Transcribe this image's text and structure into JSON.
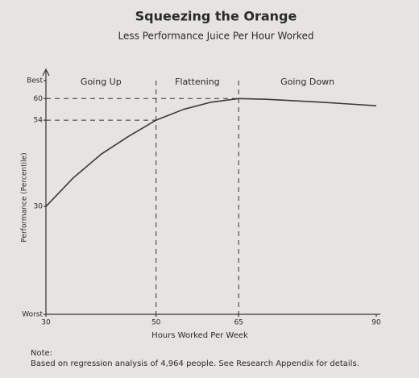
{
  "chart_data": {
    "type": "line",
    "title": "Squeezing the Orange",
    "subtitle": "Less Performance Juice Per Hour Worked",
    "x_label": "Hours Worked Per Week",
    "y_label": "Performance (Percentile)",
    "x": [
      30,
      35,
      40,
      45,
      50,
      55,
      60,
      65,
      70,
      75,
      80,
      85,
      90
    ],
    "values": [
      30,
      38,
      44.5,
      49.5,
      54,
      57,
      59,
      60,
      59.8,
      59.4,
      59,
      58.5,
      58
    ],
    "color": "#3a3a3a",
    "xlim": [
      30,
      90
    ],
    "xticks": [
      30,
      50,
      65,
      90
    ],
    "ylim": [
      0,
      65
    ],
    "yticks": [
      {
        "value": 0,
        "label": "Worst"
      },
      30,
      54,
      60,
      {
        "value": 65,
        "label": "Best"
      }
    ],
    "guides": [
      {
        "x": 50,
        "y": 54
      },
      {
        "x": 65,
        "y": 60
      }
    ],
    "regions": [
      {
        "label": "Going Up",
        "from": 30,
        "to": 50
      },
      {
        "label": "Flattening",
        "from": 50,
        "to": 65
      },
      {
        "label": "Going Down",
        "from": 65,
        "to": 90
      }
    ],
    "note_title": "Note:",
    "note": "Based on regression analysis of 4,964 people. See Research Appendix for details."
  }
}
